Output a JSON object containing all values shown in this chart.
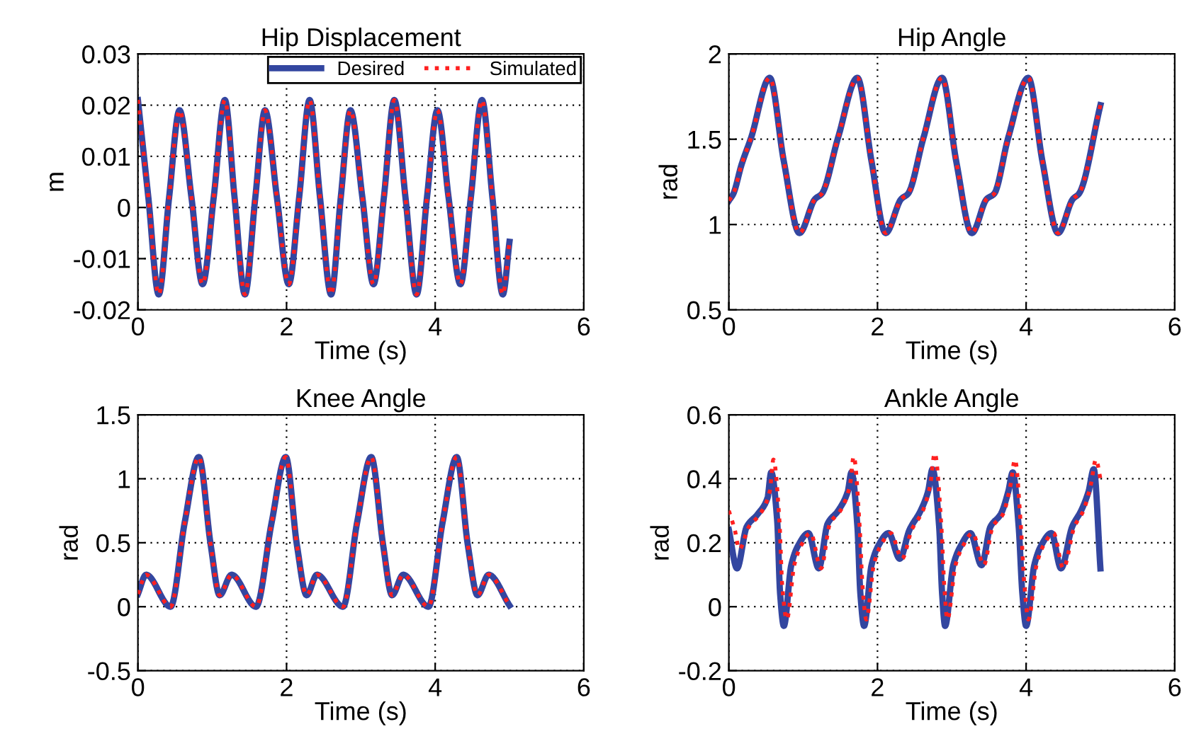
{
  "chart_data": [
    {
      "type": "line",
      "title": "Hip Displacement",
      "xlabel": "Time (s)",
      "ylabel": "m",
      "xlim": [
        0,
        6
      ],
      "xticks": [
        0,
        2,
        4,
        6
      ],
      "ylim": [
        -0.02,
        0.03
      ],
      "yticks": [
        -0.02,
        -0.01,
        0,
        0.01,
        0.02,
        0.03
      ],
      "grid": true,
      "legend": "top right",
      "x": [
        0,
        0.14,
        0.28,
        0.42,
        0.56,
        0.72,
        0.87,
        1.02,
        1.17,
        1.3,
        1.44,
        1.58,
        1.71,
        1.87,
        2.03,
        2.17,
        2.31,
        2.45,
        2.6,
        2.73,
        2.86,
        3.02,
        3.17,
        3.31,
        3.45,
        3.6,
        3.75,
        3.89,
        4.03,
        4.18,
        4.34,
        4.48,
        4.63,
        4.77,
        4.91,
        5.0
      ],
      "series": [
        {
          "name": "Desired",
          "color": "#3346a0",
          "line_style": "solid",
          "values": [
            0.021,
            0.002,
            -0.017,
            0.002,
            0.019,
            0.002,
            -0.015,
            0.002,
            0.021,
            0.002,
            -0.017,
            0.002,
            0.019,
            0.002,
            -0.015,
            0.002,
            0.021,
            0.002,
            -0.017,
            0.002,
            0.019,
            0.002,
            -0.015,
            0.002,
            0.021,
            0.002,
            -0.017,
            0.002,
            0.019,
            0.002,
            -0.015,
            0.002,
            0.021,
            0.002,
            -0.017,
            -0.0067
          ]
        },
        {
          "name": "Simulated",
          "color": "#ff2020",
          "line_style": "dotted",
          "values": [
            0.021,
            0.002,
            -0.017,
            0.002,
            0.019,
            0.002,
            -0.015,
            0.002,
            0.021,
            0.002,
            -0.017,
            0.002,
            0.019,
            0.002,
            -0.015,
            0.002,
            0.021,
            0.002,
            -0.017,
            0.002,
            0.019,
            0.002,
            -0.015,
            0.002,
            0.021,
            0.002,
            -0.017,
            0.002,
            0.019,
            0.002,
            -0.015,
            0.002,
            0.021,
            0.002,
            -0.017,
            -0.0067
          ]
        }
      ]
    },
    {
      "type": "line",
      "title": "Hip Angle",
      "xlabel": "Time (s)",
      "ylabel": "rad",
      "xlim": [
        0,
        6
      ],
      "xticks": [
        0,
        2,
        4,
        6
      ],
      "ylim": [
        0.5,
        2
      ],
      "yticks": [
        0.5,
        1,
        1.5,
        2
      ],
      "grid": true,
      "x": [
        0,
        0.06,
        0.17,
        0.3,
        0.55,
        0.74,
        0.95,
        1.16,
        1.25,
        1.47,
        1.73,
        1.92,
        2.11,
        2.32,
        2.41,
        2.62,
        2.87,
        3.06,
        3.27,
        3.47,
        3.57,
        3.76,
        4.03,
        4.22,
        4.43,
        4.63,
        4.71,
        5.0
      ],
      "series": [
        {
          "color": "#3346a0",
          "line_style": "solid",
          "values": [
            1.14,
            1.18,
            1.35,
            1.51,
            1.86,
            1.37,
            0.95,
            1.15,
            1.18,
            1.51,
            1.86,
            1.37,
            0.95,
            1.15,
            1.18,
            1.51,
            1.86,
            1.37,
            0.95,
            1.15,
            1.18,
            1.51,
            1.86,
            1.37,
            0.95,
            1.15,
            1.18,
            1.7
          ]
        },
        {
          "color": "#ff2020",
          "line_style": "dotted",
          "values": [
            1.14,
            1.18,
            1.35,
            1.51,
            1.86,
            1.37,
            0.95,
            1.15,
            1.18,
            1.51,
            1.86,
            1.37,
            0.95,
            1.15,
            1.18,
            1.51,
            1.86,
            1.37,
            0.95,
            1.15,
            1.18,
            1.51,
            1.86,
            1.37,
            0.95,
            1.15,
            1.18,
            1.7
          ]
        }
      ]
    },
    {
      "type": "line",
      "title": "Knee Angle",
      "xlabel": "Time (s)",
      "ylabel": "rad",
      "xlim": [
        0,
        6
      ],
      "xticks": [
        0,
        2,
        4,
        6
      ],
      "ylim": [
        -0.5,
        1.5
      ],
      "yticks": [
        -0.5,
        0,
        0.5,
        1,
        1.5
      ],
      "grid": true,
      "x": [
        0,
        0.11,
        0.44,
        0.63,
        0.82,
        0.98,
        1.1,
        1.26,
        1.59,
        1.8,
        1.99,
        2.14,
        2.27,
        2.41,
        2.76,
        2.95,
        3.14,
        3.3,
        3.42,
        3.57,
        3.91,
        4.1,
        4.29,
        4.44,
        4.57,
        4.72,
        5.0
      ],
      "series": [
        {
          "color": "#3346a0",
          "line_style": "solid",
          "values": [
            0.1,
            0.25,
            0,
            0.66,
            1.17,
            0.48,
            0.09,
            0.25,
            0,
            0.66,
            1.17,
            0.48,
            0.09,
            0.25,
            0,
            0.66,
            1.17,
            0.48,
            0.09,
            0.25,
            0,
            0.66,
            1.17,
            0.48,
            0.09,
            0.25,
            0.01
          ]
        },
        {
          "color": "#ff2020",
          "line_style": "dotted",
          "values": [
            0.1,
            0.25,
            0,
            0.66,
            1.17,
            0.48,
            0.09,
            0.25,
            0,
            0.66,
            1.17,
            0.48,
            0.09,
            0.25,
            0,
            0.66,
            1.17,
            0.48,
            0.09,
            0.25,
            0,
            0.66,
            1.17,
            0.48,
            0.09,
            0.25,
            0.01
          ]
        }
      ]
    },
    {
      "type": "line",
      "title": "Ankle Angle",
      "xlabel": "Time (s)",
      "ylabel": "rad",
      "xlim": [
        0,
        6
      ],
      "xticks": [
        0,
        2,
        4,
        6
      ],
      "ylim": [
        -0.2,
        0.6
      ],
      "yticks": [
        -0.2,
        0,
        0.2,
        0.4,
        0.6
      ],
      "grid": true,
      "series": [
        {
          "color": "#3346a0",
          "line_style": "solid",
          "x": [
            0,
            0.11,
            0.24,
            0.39,
            0.52,
            0.57,
            0.65,
            0.69,
            0.74,
            0.84,
            0.93,
            1.07,
            1.21,
            1.33,
            1.47,
            1.6,
            1.65,
            1.73,
            1.77,
            1.82,
            1.92,
            2.01,
            2.15,
            2.3,
            2.43,
            2.58,
            2.68,
            2.74,
            2.83,
            2.87,
            2.91,
            3.02,
            3.12,
            3.25,
            3.4,
            3.52,
            3.66,
            3.76,
            3.82,
            3.9,
            3.95,
            4.0,
            4.11,
            4.2,
            4.34,
            4.47,
            4.62,
            4.74,
            4.84,
            4.91,
            5.0
          ],
          "values": [
            0.24,
            0.12,
            0.25,
            0.29,
            0.34,
            0.42,
            0.27,
            0.04,
            -0.06,
            0.13,
            0.19,
            0.23,
            0.12,
            0.26,
            0.3,
            0.36,
            0.42,
            0.25,
            0.04,
            -0.06,
            0.13,
            0.19,
            0.23,
            0.15,
            0.24,
            0.3,
            0.36,
            0.43,
            0.25,
            0.04,
            -0.06,
            0.13,
            0.19,
            0.23,
            0.13,
            0.25,
            0.29,
            0.36,
            0.42,
            0.25,
            0.04,
            -0.06,
            0.13,
            0.19,
            0.23,
            0.12,
            0.25,
            0.3,
            0.36,
            0.43,
            0.12
          ]
        },
        {
          "color": "#ff2020",
          "line_style": "dotted",
          "x": [
            0,
            0.08,
            0.14,
            0.27,
            0.42,
            0.55,
            0.6,
            0.68,
            0.72,
            0.78,
            0.88,
            0.97,
            1.1,
            1.24,
            1.36,
            1.5,
            1.63,
            1.68,
            1.76,
            1.8,
            1.85,
            1.95,
            2.04,
            2.18,
            2.33,
            2.46,
            2.61,
            2.71,
            2.77,
            2.86,
            2.9,
            2.94,
            3.05,
            3.15,
            3.28,
            3.43,
            3.55,
            3.69,
            3.79,
            3.85,
            3.93,
            3.98,
            4.03,
            4.14,
            4.23,
            4.37,
            4.5,
            4.65,
            4.77,
            4.87,
            4.94,
            5.0
          ],
          "values": [
            0.3,
            0.24,
            0.18,
            0.25,
            0.29,
            0.36,
            0.46,
            0.27,
            0.06,
            -0.04,
            0.13,
            0.19,
            0.23,
            0.12,
            0.26,
            0.3,
            0.38,
            0.47,
            0.25,
            0.06,
            -0.04,
            0.13,
            0.19,
            0.23,
            0.15,
            0.24,
            0.3,
            0.38,
            0.48,
            0.25,
            0.06,
            -0.04,
            0.13,
            0.19,
            0.23,
            0.13,
            0.25,
            0.29,
            0.38,
            0.46,
            0.25,
            0.06,
            -0.04,
            0.13,
            0.19,
            0.23,
            0.12,
            0.25,
            0.3,
            0.38,
            0.46,
            0.4
          ]
        }
      ]
    }
  ]
}
